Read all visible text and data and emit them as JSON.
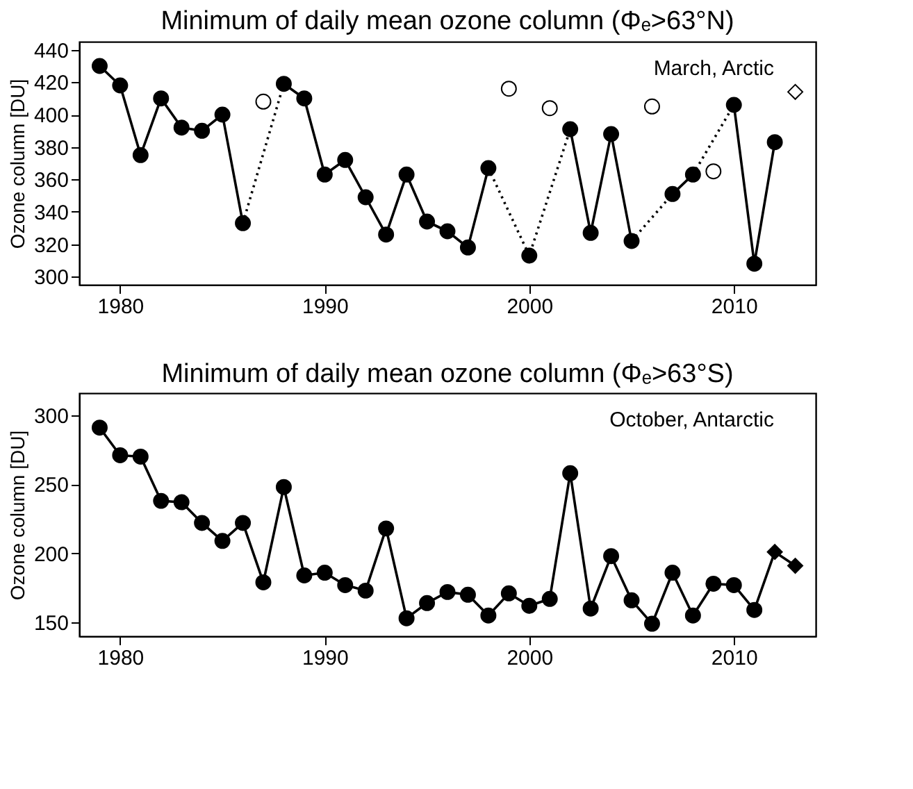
{
  "chart_data": [
    {
      "type": "line",
      "title": "Minimum of daily mean ozone column (Φₑ>63°N)",
      "ylabel": "Ozone column [DU]",
      "xlim": [
        1978,
        2014
      ],
      "xticks": [
        1980,
        1990,
        2000,
        2010
      ],
      "ylim": [
        295,
        445
      ],
      "yticks": [
        300,
        320,
        340,
        360,
        380,
        400,
        420,
        440
      ],
      "grid": false,
      "legend": false,
      "annotations": [
        "March, Arctic"
      ],
      "series": [
        {
          "color": "#000000",
          "marker": "none",
          "line_style": "solid",
          "x": [
            1979,
            1980,
            1981,
            1982,
            1983,
            1984,
            1985,
            1986
          ],
          "values": [
            430,
            418,
            375,
            410,
            392,
            390,
            400,
            333
          ]
        },
        {
          "color": "#000000",
          "marker": "none",
          "line_style": "solid",
          "x": [
            1988,
            1989,
            1990,
            1991,
            1992,
            1993,
            1994,
            1995,
            1996,
            1997,
            1998
          ],
          "values": [
            419,
            410,
            363,
            372,
            349,
            326,
            363,
            334,
            328,
            318,
            367
          ]
        },
        {
          "color": "#000000",
          "marker": "none",
          "line_style": "solid",
          "x": [
            2002,
            2003,
            2004,
            2005
          ],
          "values": [
            391,
            327,
            388,
            322
          ]
        },
        {
          "color": "#000000",
          "marker": "none",
          "line_style": "solid",
          "x": [
            2007,
            2008
          ],
          "values": [
            351,
            363
          ]
        },
        {
          "color": "#000000",
          "marker": "none",
          "line_style": "solid",
          "x": [
            2010,
            2011,
            2012
          ],
          "values": [
            406,
            308,
            383
          ]
        },
        {
          "color": "#000000",
          "marker": "none",
          "line_style": "dotted",
          "x": [
            1986,
            1988
          ],
          "values": [
            333,
            419
          ]
        },
        {
          "color": "#000000",
          "marker": "none",
          "line_style": "dotted",
          "x": [
            1998,
            2000,
            2002
          ],
          "values": [
            367,
            313,
            391
          ]
        },
        {
          "color": "#000000",
          "marker": "none",
          "line_style": "dotted",
          "x": [
            2005,
            2007
          ],
          "values": [
            322,
            351
          ]
        },
        {
          "color": "#000000",
          "marker": "none",
          "line_style": "dotted",
          "x": [
            2008,
            2010
          ],
          "values": [
            363,
            406
          ]
        },
        {
          "type": "scatter",
          "color": "#000000",
          "marker": "circle",
          "x": [
            1979,
            1980,
            1981,
            1982,
            1983,
            1984,
            1985,
            1986,
            1988,
            1989,
            1990,
            1991,
            1992,
            1993,
            1994,
            1995,
            1996,
            1997,
            1998,
            2000,
            2002,
            2003,
            2004,
            2005,
            2007,
            2008,
            2010,
            2011,
            2012
          ],
          "values": [
            430,
            418,
            375,
            410,
            392,
            390,
            400,
            333,
            419,
            410,
            363,
            372,
            349,
            326,
            363,
            334,
            328,
            318,
            367,
            313,
            391,
            327,
            388,
            322,
            351,
            363,
            406,
            308,
            383
          ]
        },
        {
          "type": "scatter",
          "color": "#ffffff",
          "marker": "circle",
          "x": [
            1987,
            1999,
            2001,
            2006,
            2009
          ],
          "values": [
            408,
            416,
            404,
            405,
            365
          ]
        },
        {
          "type": "scatter",
          "color": "#ffffff",
          "marker": "diamond",
          "x": [
            2013
          ],
          "values": [
            414
          ]
        }
      ]
    },
    {
      "type": "line",
      "title": "Minimum of daily mean ozone column (Φₑ>63°S)",
      "ylabel": "Ozone column [DU]",
      "xlim": [
        1978,
        2014
      ],
      "xticks": [
        1980,
        1990,
        2000,
        2010
      ],
      "ylim": [
        140,
        316
      ],
      "yticks": [
        150,
        200,
        250,
        300
      ],
      "grid": false,
      "legend": false,
      "annotations": [
        "October, Antarctic"
      ],
      "series": [
        {
          "color": "#000000",
          "marker": "none",
          "line_style": "solid",
          "x": [
            1979,
            1980,
            1981,
            1982,
            1983,
            1984,
            1985,
            1986,
            1987,
            1988,
            1989,
            1990,
            1991,
            1992,
            1993,
            1994,
            1995,
            1996,
            1997,
            1998,
            1999,
            2000,
            2001,
            2002,
            2003,
            2004,
            2005,
            2006,
            2007,
            2008,
            2009,
            2010,
            2011,
            2012,
            2013
          ],
          "values": [
            291,
            271,
            270,
            238,
            237,
            222,
            209,
            222,
            179,
            248,
            184,
            186,
            177,
            173,
            218,
            153,
            164,
            172,
            170,
            155,
            171,
            162,
            167,
            258,
            160,
            198,
            166,
            149,
            186,
            155,
            178,
            177,
            159,
            201,
            191
          ]
        },
        {
          "type": "scatter",
          "color": "#000000",
          "marker": "circle",
          "x": [
            1979,
            1980,
            1981,
            1982,
            1983,
            1984,
            1985,
            1986,
            1987,
            1988,
            1989,
            1990,
            1991,
            1992,
            1993,
            1994,
            1995,
            1996,
            1997,
            1998,
            1999,
            2000,
            2001,
            2002,
            2003,
            2004,
            2005,
            2006,
            2007,
            2008,
            2009,
            2010,
            2011
          ],
          "values": [
            291,
            271,
            270,
            238,
            237,
            222,
            209,
            222,
            179,
            248,
            184,
            186,
            177,
            173,
            218,
            153,
            164,
            172,
            170,
            155,
            171,
            162,
            167,
            258,
            160,
            198,
            166,
            149,
            186,
            155,
            178,
            177,
            159
          ]
        },
        {
          "type": "scatter",
          "color": "#000000",
          "marker": "diamond",
          "x": [
            2012,
            2013
          ],
          "values": [
            201,
            191
          ]
        }
      ]
    }
  ]
}
